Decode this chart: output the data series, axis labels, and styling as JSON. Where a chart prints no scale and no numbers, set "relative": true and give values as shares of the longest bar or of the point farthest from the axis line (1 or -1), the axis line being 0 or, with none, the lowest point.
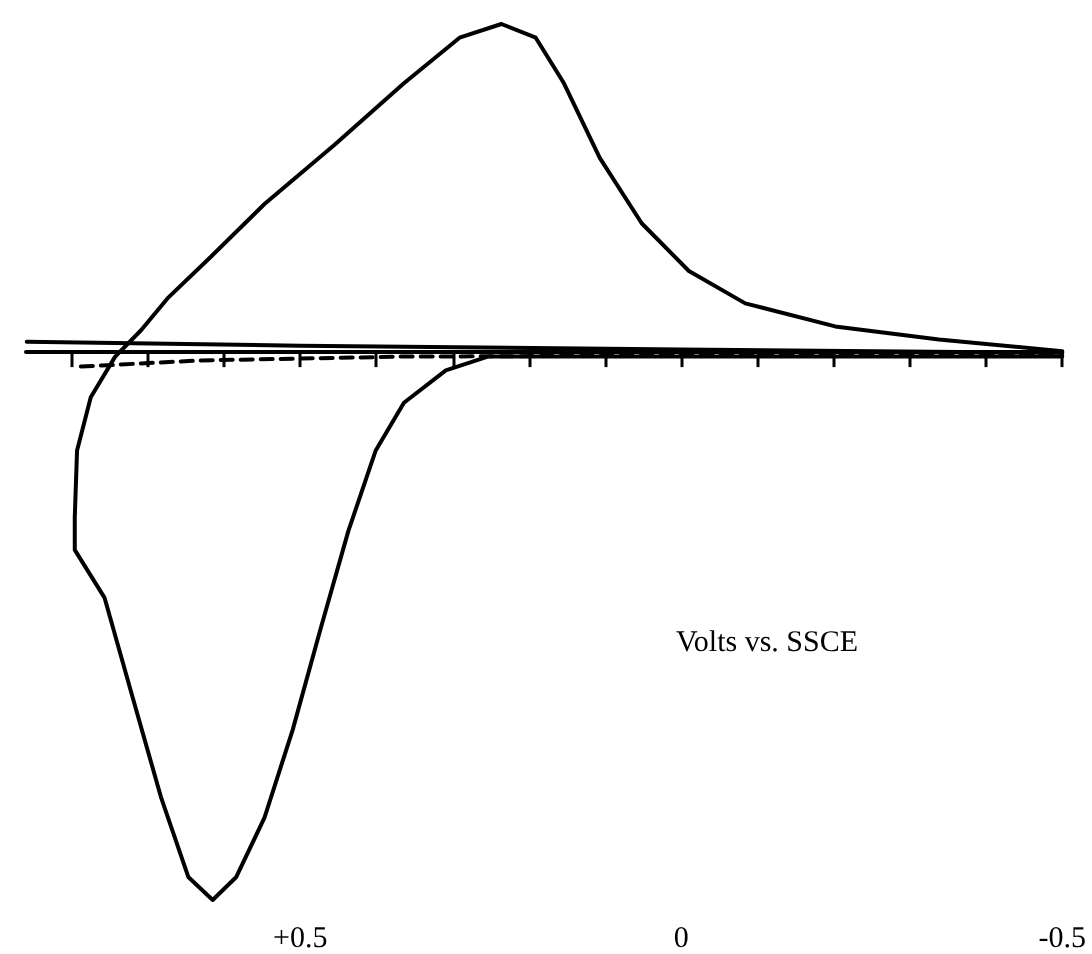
{
  "chart_data": {
    "type": "line",
    "xlabel": "Volts vs. SSCE",
    "relative": true,
    "xlim": [
      0.86,
      -0.5
    ],
    "xticks": [
      {
        "value": 0.8,
        "label": null
      },
      {
        "value": 0.7,
        "label": null
      },
      {
        "value": 0.6,
        "label": null
      },
      {
        "value": 0.5,
        "label": "+0.5"
      },
      {
        "value": 0.4,
        "label": null
      },
      {
        "value": 0.3,
        "label": null
      },
      {
        "value": 0.2,
        "label": null
      },
      {
        "value": 0.1,
        "label": null
      },
      {
        "value": 0,
        "label": "0"
      },
      {
        "value": -0.1,
        "label": null
      },
      {
        "value": -0.2,
        "label": null
      },
      {
        "value": -0.3,
        "label": null
      },
      {
        "value": -0.4,
        "label": null
      },
      {
        "value": -0.5,
        "label": "-0.5"
      }
    ],
    "marker": "none",
    "grid": false,
    "series": [
      {
        "color": "#000000",
        "line_style": "solid",
        "x": [
          -0.5,
          -0.285,
          0.107,
          0.21,
          0.254,
          0.309,
          0.364,
          0.401,
          0.437,
          0.474,
          0.51,
          0.547,
          0.584,
          0.615,
          0.647,
          0.683,
          0.72,
          0.757,
          0.796,
          0.796,
          0.793,
          0.775,
          0.743,
          0.709,
          0.673,
          0.618,
          0.547,
          0.455,
          0.364,
          0.291,
          0.236,
          0.191,
          0.154,
          0.107,
          0.052,
          -0.01,
          -0.084,
          -0.202,
          -0.338,
          -0.5
        ],
        "values": [
          -0.01,
          -0.01,
          -0.01,
          -0.01,
          -0.01,
          -0.035,
          -0.094,
          -0.181,
          -0.328,
          -0.509,
          -0.69,
          -0.85,
          -0.958,
          -1,
          -0.958,
          -0.812,
          -0.631,
          -0.449,
          -0.362,
          -0.303,
          -0.181,
          -0.084,
          -0.01,
          0.038,
          0.098,
          0.171,
          0.268,
          0.376,
          0.488,
          0.571,
          0.596,
          0.571,
          0.488,
          0.352,
          0.233,
          0.146,
          0.087,
          0.045,
          0.021,
          0
        ]
      },
      {
        "color": "#000000",
        "line_style": "solid",
        "x": [
          0.859,
          0.5,
          0,
          -0.5
        ],
        "values": [
          0.017,
          0.01,
          0.003,
          -0.003
        ]
      },
      {
        "color": "#000000",
        "line_style": "dashed",
        "x": [
          0.788,
          0.631,
          0.369,
          0,
          -0.5
        ],
        "values": [
          -0.028,
          -0.017,
          -0.01,
          -0.008,
          -0.007
        ]
      }
    ]
  }
}
